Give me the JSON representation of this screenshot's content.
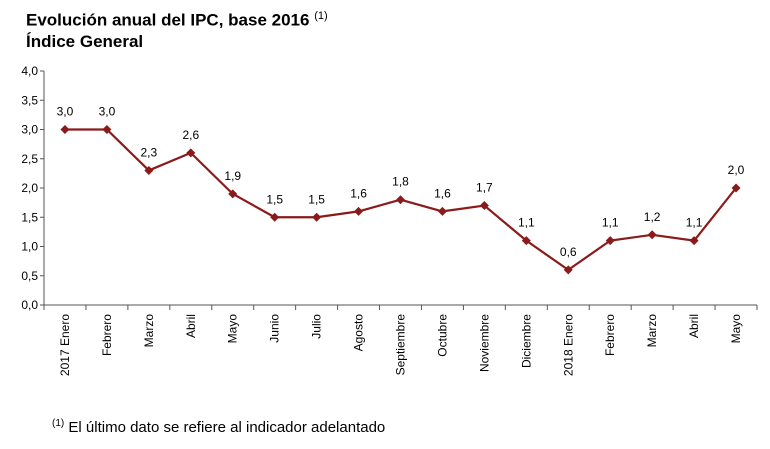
{
  "title_line1": "Evolución anual del IPC, base 2016",
  "title_marker": "(1)",
  "title_line2": "Índice General",
  "footnote_marker": "(1)",
  "footnote_text": "El último dato se refiere al indicador adelantado",
  "chart_data": {
    "type": "line",
    "categories": [
      "2017 Enero",
      "Febrero",
      "Marzo",
      "Abril",
      "Mayo",
      "Junio",
      "Julio",
      "Agosto",
      "Septiembre",
      "Octubre",
      "Noviembre",
      "Diciembre",
      "2018 Enero",
      "Febrero",
      "Marzo",
      "Abril",
      "Mayo"
    ],
    "values": [
      3.0,
      3.0,
      2.3,
      2.6,
      1.9,
      1.5,
      1.5,
      1.6,
      1.8,
      1.6,
      1.7,
      1.1,
      0.6,
      1.1,
      1.2,
      1.1,
      2.0
    ],
    "data_labels": [
      "3,0",
      "3,0",
      "2,3",
      "2,6",
      "1,9",
      "1,5",
      "1,5",
      "1,6",
      "1,8",
      "1,6",
      "1,7",
      "1,1",
      "0,6",
      "1,1",
      "1,2",
      "1,1",
      "2,0"
    ],
    "y_ticks": [
      "0,0",
      "0,5",
      "1,0",
      "1,5",
      "2,0",
      "2,5",
      "3,0",
      "3,5",
      "4,0"
    ],
    "ylim": [
      0,
      4
    ],
    "line_color": "#8b1a1a",
    "grid": false,
    "legend": false
  }
}
